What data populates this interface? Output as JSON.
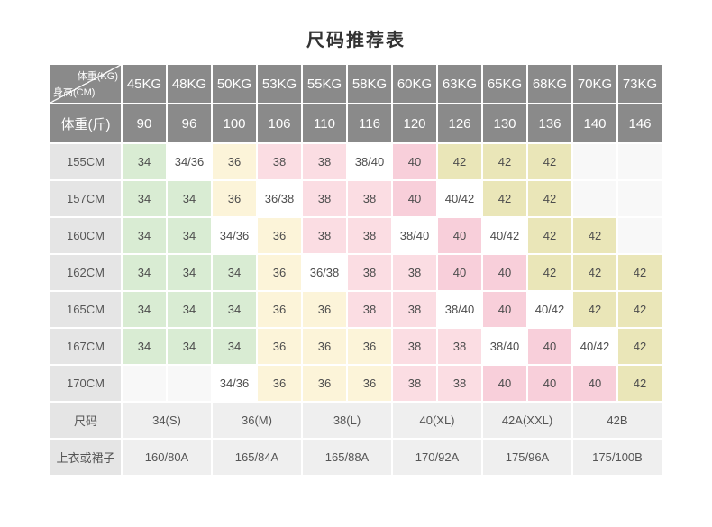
{
  "title": "尺码推荐表",
  "colors": {
    "header_bg": "#8a8a8a",
    "header_text": "#ffffff",
    "label_bg": "#e5e5e5",
    "footer_bg": "#efefef",
    "empty_bg": "#f8f8f8",
    "split_bg": "#ffffff",
    "size_34": "#d9ecd3",
    "size_36": "#fcf4d9",
    "size_38": "#fbdde3",
    "size_40": "#f8cfda",
    "size_42": "#eae6b8",
    "title_color": "#333333",
    "cell_text": "#4d4d4d"
  },
  "chart_data": {
    "type": "table",
    "title": "尺码推荐表",
    "corner": {
      "top_right": "体重(KG)",
      "bottom_left": "身高(CM)"
    },
    "columns_weight_kg": [
      "45KG",
      "48KG",
      "50KG",
      "53KG",
      "55KG",
      "58KG",
      "60KG",
      "63KG",
      "65KG",
      "68KG",
      "70KG",
      "73KG"
    ],
    "row_weight_jin": {
      "label": "体重(斤)",
      "values": [
        "90",
        "96",
        "100",
        "106",
        "110",
        "116",
        "120",
        "126",
        "130",
        "136",
        "140",
        "146"
      ]
    },
    "rows": [
      {
        "height": "155CM",
        "cells": [
          "34",
          "34/36",
          "36",
          "38",
          "38",
          "38/40",
          "40",
          "42",
          "42",
          "42",
          "",
          ""
        ]
      },
      {
        "height": "157CM",
        "cells": [
          "34",
          "34",
          "36",
          "36/38",
          "38",
          "38",
          "40",
          "40/42",
          "42",
          "42",
          "",
          ""
        ]
      },
      {
        "height": "160CM",
        "cells": [
          "34",
          "34",
          "34/36",
          "36",
          "38",
          "38",
          "38/40",
          "40",
          "40/42",
          "42",
          "42",
          ""
        ]
      },
      {
        "height": "162CM",
        "cells": [
          "34",
          "34",
          "34",
          "36",
          "36/38",
          "38",
          "38",
          "40",
          "40",
          "42",
          "42",
          "42"
        ]
      },
      {
        "height": "165CM",
        "cells": [
          "34",
          "34",
          "34",
          "36",
          "36",
          "38",
          "38",
          "38/40",
          "40",
          "40/42",
          "42",
          "42"
        ]
      },
      {
        "height": "167CM",
        "cells": [
          "34",
          "34",
          "34",
          "36",
          "36",
          "36",
          "38",
          "38",
          "38/40",
          "40",
          "40/42",
          "42"
        ]
      },
      {
        "height": "170CM",
        "cells": [
          "",
          "",
          "34/36",
          "36",
          "36",
          "36",
          "38",
          "38",
          "40",
          "40",
          "40",
          "42"
        ]
      }
    ],
    "footer_rows": [
      {
        "label": "尺码",
        "cells": [
          "34(S)",
          "36(M)",
          "38(L)",
          "40(XL)",
          "42A(XXL)",
          "42B"
        ]
      },
      {
        "label": "上衣或裙子",
        "cells": [
          "160/80A",
          "165/84A",
          "165/88A",
          "170/92A",
          "175/96A",
          "175/100B"
        ]
      }
    ]
  }
}
